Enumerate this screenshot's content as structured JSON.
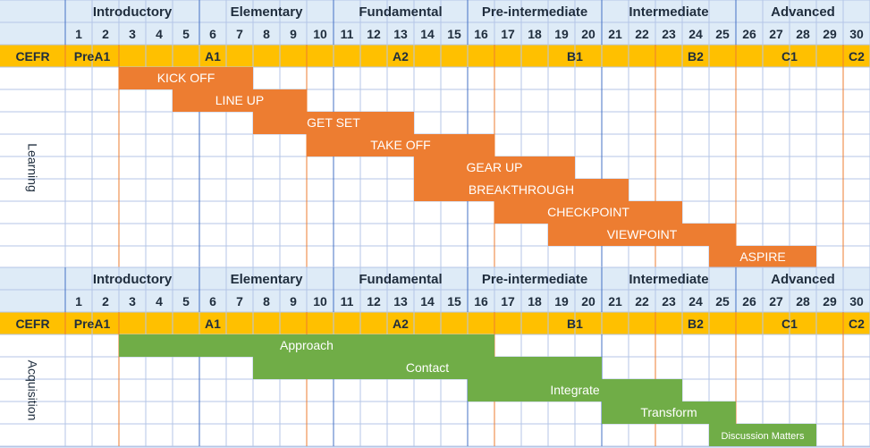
{
  "levels": [
    {
      "label": "Introductory",
      "start": 1,
      "end": 5
    },
    {
      "label": "Elementary",
      "start": 6,
      "end": 10
    },
    {
      "label": "Fundamental",
      "start": 11,
      "end": 15
    },
    {
      "label": "Pre-intermediate",
      "start": 16,
      "end": 20
    },
    {
      "label": "Intermediate",
      "start": 21,
      "end": 25
    },
    {
      "label": "Advanced",
      "start": 26,
      "end": 30
    }
  ],
  "units": [
    "1",
    "2",
    "3",
    "4",
    "5",
    "6",
    "7",
    "8",
    "9",
    "10",
    "11",
    "12",
    "13",
    "14",
    "15",
    "16",
    "17",
    "18",
    "19",
    "20",
    "21",
    "22",
    "23",
    "24",
    "25",
    "26",
    "27",
    "28",
    "29",
    "30"
  ],
  "cefr": {
    "label": "CEFR",
    "bands": [
      {
        "label": "PreA1",
        "start": 1,
        "end": 2
      },
      {
        "label": "A1",
        "start": 3,
        "end": 9
      },
      {
        "label": "A2",
        "start": 10,
        "end": 16
      },
      {
        "label": "B1",
        "start": 17,
        "end": 22
      },
      {
        "label": "B2",
        "start": 23,
        "end": 25
      },
      {
        "label": "C1",
        "start": 26,
        "end": 29
      },
      {
        "label": "C2",
        "start": 30,
        "end": 30
      }
    ]
  },
  "sections": [
    {
      "label": "Learning",
      "bar_color": "#ed7d31",
      "bars": [
        {
          "label": "KICK OFF",
          "start": 3,
          "end": 7
        },
        {
          "label": "LINE UP",
          "start": 5,
          "end": 9
        },
        {
          "label": "GET SET",
          "start": 8,
          "end": 13
        },
        {
          "label": "TAKE OFF",
          "start": 10,
          "end": 16
        },
        {
          "label": "GEAR UP",
          "start": 14,
          "end": 19
        },
        {
          "label": "BREAKTHROUGH",
          "start": 14,
          "end": 21
        },
        {
          "label": "CHECKPOINT",
          "start": 17,
          "end": 23
        },
        {
          "label": "VIEWPOINT",
          "start": 19,
          "end": 25
        },
        {
          "label": "ASPIRE",
          "start": 25,
          "end": 28
        }
      ]
    },
    {
      "label": "Acquisition",
      "bar_color": "#70ad47",
      "bars": [
        {
          "label": "Approach",
          "start": 3,
          "end": 16
        },
        {
          "label": "Contact",
          "start": 8,
          "end": 20
        },
        {
          "label": "Integrate",
          "start": 16,
          "end": 23
        },
        {
          "label": "Transform",
          "start": 21,
          "end": 25
        },
        {
          "label": "Discussion Matters",
          "start": 25,
          "end": 28
        }
      ]
    }
  ],
  "colors": {
    "header_bg": "#deebf7",
    "cefr_bg": "#ffc000",
    "grid": "#b4c6e7",
    "level_line": "#4472c4",
    "cefr_line": "#ed7d31",
    "text": "#1f2d3d"
  }
}
